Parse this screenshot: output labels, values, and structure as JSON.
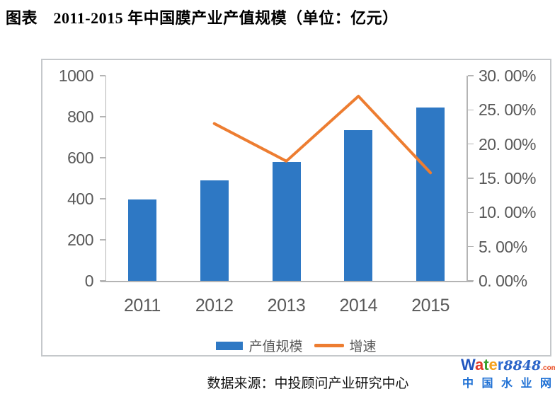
{
  "title": "图表　2011-2015 年中国膜产业产值规模（单位：亿元）",
  "chart_data": {
    "type": "bar",
    "subtype": "bar-line-dual-axis",
    "title": "2011-2015 年中国膜产业产值规模（单位：亿元）",
    "categories": [
      "2011",
      "2012",
      "2013",
      "2014",
      "2015"
    ],
    "series": [
      {
        "name": "产值规模",
        "type": "bar",
        "axis": "left",
        "unit": "亿元",
        "values": [
          395,
          490,
          580,
          735,
          845
        ]
      },
      {
        "name": "增速",
        "type": "line",
        "axis": "right",
        "unit": "%",
        "values": [
          null,
          23.0,
          17.5,
          27.0,
          15.8
        ]
      }
    ],
    "left_axis": {
      "min": 0,
      "max": 1000,
      "step": 200,
      "labels": [
        "1000",
        "800",
        "600",
        "400",
        "200",
        "0"
      ]
    },
    "right_axis": {
      "min": 0,
      "max": 30,
      "step": 5,
      "labels": [
        "30. 00%",
        "25. 00%",
        "20. 00%",
        "15. 00%",
        "10. 00%",
        "5. 00%",
        "0. 00%"
      ]
    },
    "grid": false,
    "legend_position": "bottom",
    "colors": {
      "bar": "#2e78c4",
      "line": "#ed7d31",
      "axis_text": "#595959",
      "axis_line": "#b4b4b4",
      "frame_border": "#c5c8cb"
    }
  },
  "source_note": "数据来源：中投顾问产业研究中心",
  "watermark": {
    "letters": [
      {
        "ch": "W",
        "color": "#1f54bf"
      },
      {
        "ch": "a",
        "color": "#e03a2a"
      },
      {
        "ch": "t",
        "color": "#3aa02e"
      },
      {
        "ch": "e",
        "color": "#f5a11c"
      },
      {
        "ch": "r",
        "color": "#2e6fd8"
      }
    ],
    "number": "8848",
    "number_color": "#2a64c8",
    "tld": ".com",
    "tld_color": "#e8491f",
    "site_name": "中国水业网",
    "site_color": "#1d6fd4"
  }
}
